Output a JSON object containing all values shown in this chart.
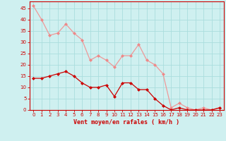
{
  "x": [
    0,
    1,
    2,
    3,
    4,
    5,
    6,
    7,
    8,
    9,
    10,
    11,
    12,
    13,
    14,
    15,
    16,
    17,
    18,
    19,
    20,
    21,
    22,
    23
  ],
  "wind_avg": [
    14,
    14,
    15,
    16,
    17,
    15,
    12,
    10,
    10,
    11,
    6,
    12,
    12,
    9,
    9,
    5,
    2,
    0,
    1,
    0,
    0,
    0,
    0,
    1
  ],
  "wind_gust": [
    46,
    40,
    33,
    34,
    38,
    34,
    31,
    22,
    24,
    22,
    19,
    24,
    24,
    29,
    22,
    20,
    16,
    1,
    3,
    1,
    0,
    1,
    0,
    1
  ],
  "bg_color": "#cff0f0",
  "grid_color": "#aadddd",
  "line_avg_color": "#cc0000",
  "line_gust_color": "#ee9999",
  "marker_avg_color": "#cc0000",
  "marker_gust_color": "#ee8888",
  "marker_size": 2.5,
  "xlabel": "Vent moyen/en rafales ( km/h )",
  "xlabel_color": "#cc0000",
  "tick_color": "#cc0000",
  "axis_color": "#cc0000",
  "ylim": [
    0,
    48
  ],
  "xlim": [
    -0.5,
    23.5
  ],
  "yticks": [
    0,
    5,
    10,
    15,
    20,
    25,
    30,
    35,
    40,
    45
  ],
  "xticks": [
    0,
    1,
    2,
    3,
    4,
    5,
    6,
    7,
    8,
    9,
    10,
    11,
    12,
    13,
    14,
    15,
    16,
    17,
    18,
    19,
    20,
    21,
    22,
    23
  ],
  "xlabel_fontsize": 6.0,
  "tick_fontsize": 5.0,
  "linewidth": 0.9
}
